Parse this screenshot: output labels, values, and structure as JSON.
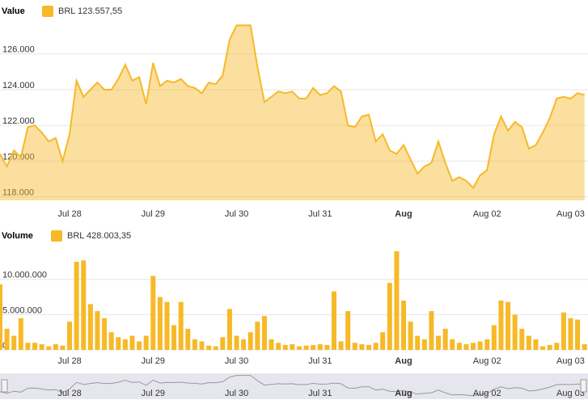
{
  "chart_data": [
    {
      "type": "area",
      "legend_title": "Value",
      "x": [
        -20,
        -18,
        -16,
        -14,
        -12,
        -10,
        -8,
        -6,
        -4,
        -2,
        0,
        2,
        4,
        6,
        8,
        10,
        12,
        14,
        16,
        18,
        20,
        22,
        24,
        26,
        28,
        30,
        32,
        34,
        36,
        38,
        40,
        42,
        44,
        46,
        48,
        50,
        52,
        54,
        56,
        58,
        60,
        62,
        64,
        66,
        68,
        70,
        72,
        74,
        76,
        78,
        80,
        82,
        84,
        86,
        88,
        90,
        92,
        94,
        96,
        98,
        100,
        102,
        104,
        106,
        108,
        110,
        112,
        114,
        116,
        118,
        120,
        122,
        124,
        126,
        128,
        130,
        132,
        134,
        136,
        138,
        140,
        142,
        144,
        146,
        148
      ],
      "series": [
        {
          "name": "BRL 123.557,55",
          "color": "#f7b928",
          "values": [
            120400,
            119700,
            120600,
            120200,
            121900,
            122000,
            121600,
            121100,
            121300,
            120000,
            121500,
            124500,
            123600,
            124000,
            124400,
            124000,
            124000,
            124600,
            125400,
            124500,
            124700,
            123200,
            125500,
            124200,
            124500,
            124400,
            124600,
            124200,
            124100,
            123800,
            124400,
            124300,
            124800,
            126800,
            127600,
            127600,
            127600,
            125300,
            123300,
            123600,
            123900,
            123800,
            123900,
            123500,
            123500,
            124100,
            123700,
            123800,
            124200,
            123900,
            122000,
            121900,
            122500,
            122600,
            121100,
            121500,
            120600,
            120400,
            120900,
            120100,
            119300,
            119700,
            119900,
            121100,
            119900,
            118900,
            119100,
            118900,
            118500,
            119200,
            119500,
            121500,
            122500,
            121700,
            122200,
            121900,
            120700,
            120900,
            121600,
            122400,
            123500,
            123600,
            123500,
            123800,
            123700
          ]
        }
      ],
      "xlim": [
        -20,
        149
      ],
      "xticks": [
        {
          "value": 0,
          "label": "Jul 28"
        },
        {
          "value": 24,
          "label": "Jul 29"
        },
        {
          "value": 48,
          "label": "Jul 30"
        },
        {
          "value": 72,
          "label": "Jul 31"
        },
        {
          "value": 96,
          "label": "Aug"
        },
        {
          "value": 120,
          "label": "Aug 02"
        },
        {
          "value": 144,
          "label": "Aug 03"
        }
      ],
      "ylim": [
        117800,
        127800
      ],
      "yticks": [
        {
          "value": 118000,
          "label": "118.000"
        },
        {
          "value": 120000,
          "label": "120.000"
        },
        {
          "value": 122000,
          "label": "122.000"
        },
        {
          "value": 124000,
          "label": "124.000"
        },
        {
          "value": 126000,
          "label": "126.000"
        }
      ],
      "grid": true
    },
    {
      "type": "bar",
      "legend_title": "Volume",
      "x": [
        -20,
        -18,
        -16,
        -14,
        -12,
        -10,
        -8,
        -6,
        -4,
        -2,
        0,
        2,
        4,
        6,
        8,
        10,
        12,
        14,
        16,
        18,
        20,
        22,
        24,
        26,
        28,
        30,
        32,
        34,
        36,
        38,
        40,
        42,
        44,
        46,
        48,
        50,
        52,
        54,
        56,
        58,
        60,
        62,
        64,
        66,
        68,
        70,
        72,
        74,
        76,
        78,
        80,
        82,
        84,
        86,
        88,
        90,
        92,
        94,
        96,
        98,
        100,
        102,
        104,
        106,
        108,
        110,
        112,
        114,
        116,
        118,
        120,
        122,
        124,
        126,
        128,
        130,
        132,
        134,
        136,
        138,
        140,
        142,
        144,
        146,
        148
      ],
      "series": [
        {
          "name": "BRL 428.003,35",
          "color": "#f7b928",
          "values": [
            9300000,
            3000000,
            2000000,
            4500000,
            1000000,
            1000000,
            800000,
            500000,
            800000,
            600000,
            4000000,
            12500000,
            12700000,
            6500000,
            5500000,
            4500000,
            2500000,
            1800000,
            1500000,
            2000000,
            1200000,
            2000000,
            10500000,
            7500000,
            6800000,
            3500000,
            6800000,
            3000000,
            1500000,
            1200000,
            600000,
            500000,
            1800000,
            5800000,
            2000000,
            1500000,
            2500000,
            4000000,
            4800000,
            1500000,
            1000000,
            700000,
            800000,
            500000,
            600000,
            700000,
            800000,
            700000,
            8300000,
            1200000,
            5500000,
            1000000,
            800000,
            700000,
            1000000,
            2500000,
            9500000,
            14000000,
            7000000,
            4000000,
            2000000,
            1500000,
            5500000,
            2000000,
            3000000,
            1500000,
            1000000,
            800000,
            1000000,
            1200000,
            1500000,
            3500000,
            7000000,
            6800000,
            5000000,
            3000000,
            2000000,
            1500000,
            500000,
            700000,
            1000000,
            5300000,
            4500000,
            4300000,
            800000
          ]
        }
      ],
      "xlim": [
        -20,
        149
      ],
      "xticks": [
        {
          "value": 0,
          "label": "Jul 28"
        },
        {
          "value": 24,
          "label": "Jul 29"
        },
        {
          "value": 48,
          "label": "Jul 30"
        },
        {
          "value": 72,
          "label": "Jul 31"
        },
        {
          "value": 96,
          "label": "Aug"
        },
        {
          "value": 120,
          "label": "Aug 02"
        },
        {
          "value": 144,
          "label": "Aug 03"
        }
      ],
      "ylim": [
        0,
        15600000
      ],
      "yticks": [
        0,
        {
          "value": 5000000,
          "label": "5.000.000"
        },
        {
          "value": 10000000,
          "label": "10.000.000"
        }
      ],
      "grid": true
    }
  ]
}
